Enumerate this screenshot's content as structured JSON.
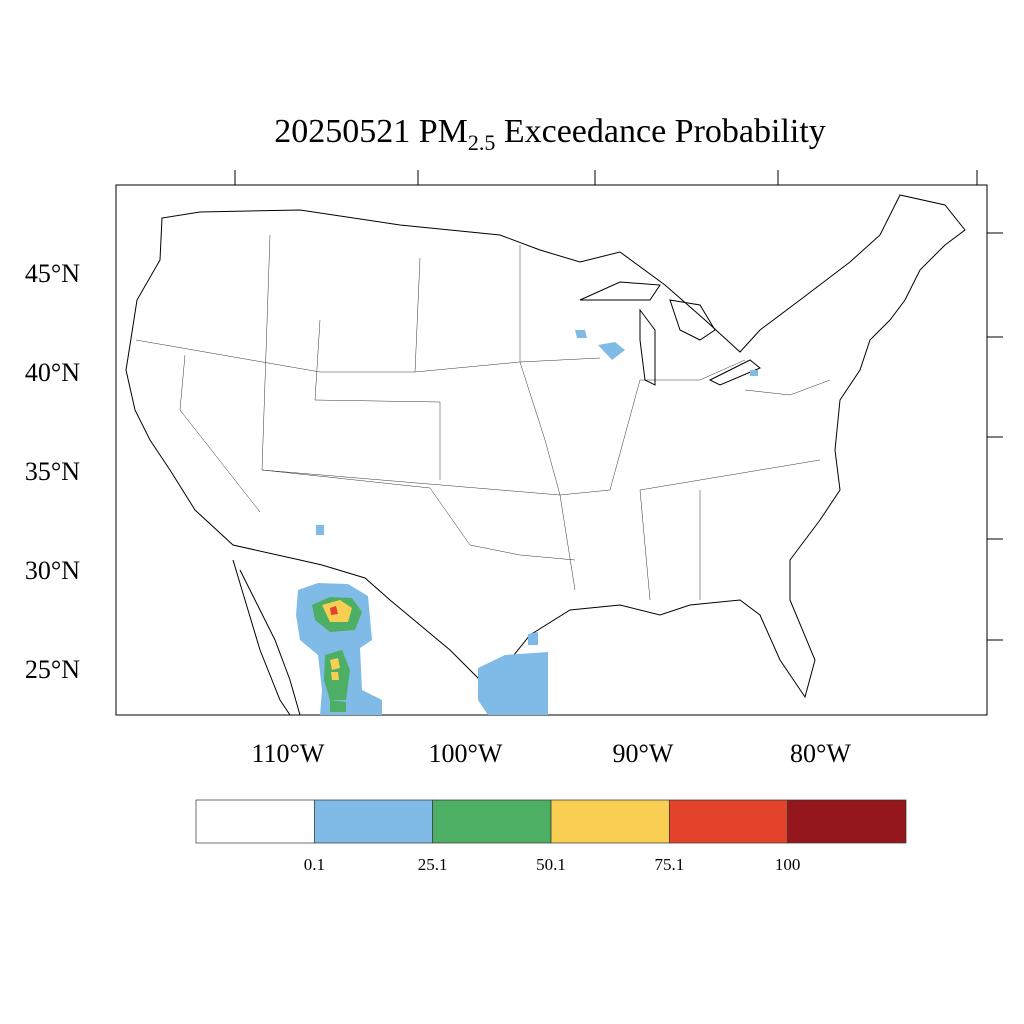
{
  "title": {
    "prefix": "20250521 PM",
    "subscript": "2.5",
    "suffix": " Exceedance Probability"
  },
  "lat_ticks": [
    {
      "value": 45,
      "label": "45°N"
    },
    {
      "value": 40,
      "label": "40°N"
    },
    {
      "value": 35,
      "label": "35°N"
    },
    {
      "value": 30,
      "label": "30°N"
    },
    {
      "value": 25,
      "label": "25°N"
    }
  ],
  "lon_ticks": [
    {
      "value": -110,
      "label": "110°W"
    },
    {
      "value": -100,
      "label": "100°W"
    },
    {
      "value": -90,
      "label": "90°W"
    },
    {
      "value": -80,
      "label": "80°W"
    }
  ],
  "colorbar": {
    "levels": [
      0.1,
      25.1,
      50.1,
      75.1,
      100
    ],
    "colors": [
      "#ffffff",
      "#7fbbe6",
      "#4caf64",
      "#f8cf52",
      "#e3432a",
      "#93171c"
    ]
  }
}
